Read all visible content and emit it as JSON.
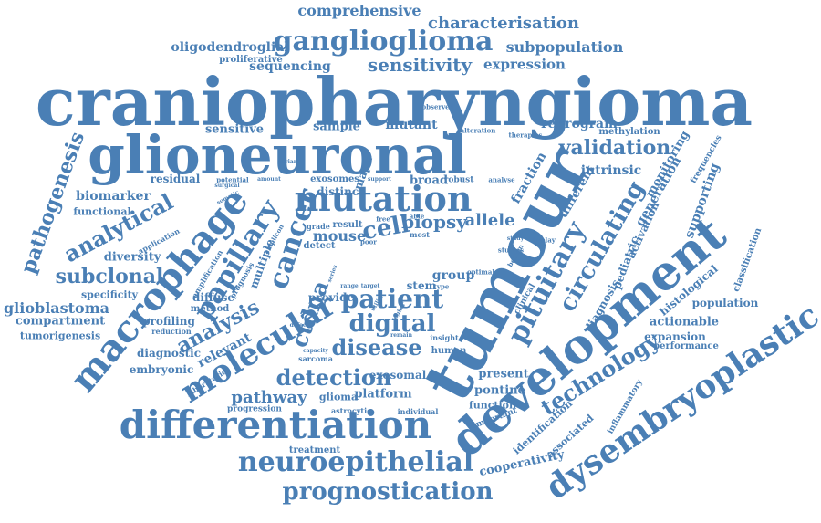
{
  "color": "#4a7fb5",
  "words": [
    {
      "text": "craniopharyngioma",
      "weight": 1.0
    },
    {
      "text": "glioneuronal",
      "weight": 0.86
    },
    {
      "text": "tumour",
      "weight": 0.86
    },
    {
      "text": "development",
      "weight": 0.74
    },
    {
      "text": "differentiation",
      "weight": 0.62
    },
    {
      "text": "macrophage",
      "weight": 0.58
    },
    {
      "text": "molecular",
      "weight": 0.54
    },
    {
      "text": "mutation",
      "weight": 0.54
    },
    {
      "text": "dysembryoplastic",
      "weight": 0.52
    },
    {
      "text": "ganglioglioma",
      "weight": 0.48
    },
    {
      "text": "papillary",
      "weight": 0.46
    },
    {
      "text": "cancer",
      "weight": 0.46
    },
    {
      "text": "pituitary",
      "weight": 0.44
    },
    {
      "text": "neuroepithelial",
      "weight": 0.44
    },
    {
      "text": "patient",
      "weight": 0.42
    },
    {
      "text": "prognostication",
      "weight": 0.4
    },
    {
      "text": "digital",
      "weight": 0.4
    },
    {
      "text": "detection",
      "weight": 0.4
    },
    {
      "text": "circulating",
      "weight": 0.38
    },
    {
      "text": "technology",
      "weight": 0.38
    },
    {
      "text": "disease",
      "weight": 0.36
    },
    {
      "text": "analytical",
      "weight": 0.36
    },
    {
      "text": "validation",
      "weight": 0.32
    },
    {
      "text": "ctdna",
      "weight": 0.34
    },
    {
      "text": "analysis",
      "weight": 0.3
    },
    {
      "text": "cell",
      "weight": 0.34
    },
    {
      "text": "pathogenesis",
      "weight": 0.3
    },
    {
      "text": "subclonal",
      "weight": 0.3
    },
    {
      "text": "sensitivity",
      "weight": 0.26
    },
    {
      "text": "characterisation",
      "weight": 0.24
    },
    {
      "text": "comprehensive",
      "weight": 0.22
    },
    {
      "text": "pathway",
      "weight": 0.24
    },
    {
      "text": "glioblastoma",
      "weight": 0.22
    },
    {
      "text": "subpopulation",
      "weight": 0.2
    },
    {
      "text": "expression",
      "weight": 0.18
    },
    {
      "text": "sequencing",
      "weight": 0.18
    },
    {
      "text": "oligodendroglial",
      "weight": 0.16
    },
    {
      "text": "proliferative",
      "weight": 0.12
    },
    {
      "text": "sensitive",
      "weight": 0.18
    },
    {
      "text": "sample",
      "weight": 0.16
    },
    {
      "text": "mutant",
      "weight": 0.18
    },
    {
      "text": "reprogram",
      "weight": 0.18
    },
    {
      "text": "methylation",
      "weight": 0.12
    },
    {
      "text": "residual",
      "weight": 0.14
    },
    {
      "text": "biomarker",
      "weight": 0.18
    },
    {
      "text": "functional",
      "weight": 0.14
    },
    {
      "text": "diversity",
      "weight": 0.16
    },
    {
      "text": "specificity",
      "weight": 0.14
    },
    {
      "text": "compartment",
      "weight": 0.16
    },
    {
      "text": "tumorigenesis",
      "weight": 0.12
    },
    {
      "text": "profiling",
      "weight": 0.14
    },
    {
      "text": "reduction",
      "weight": 0.1
    },
    {
      "text": "diagnostic",
      "weight": 0.14
    },
    {
      "text": "embryonic",
      "weight": 0.14
    },
    {
      "text": "relevant",
      "weight": 0.18
    },
    {
      "text": "mouse",
      "weight": 0.18
    },
    {
      "text": "biopsy",
      "weight": 0.22
    },
    {
      "text": "allele",
      "weight": 0.2
    },
    {
      "text": "provide",
      "weight": 0.16
    },
    {
      "text": "exosomes",
      "weight": 0.12
    },
    {
      "text": "distinct",
      "weight": 0.14
    },
    {
      "text": "broad",
      "weight": 0.14
    },
    {
      "text": "intrinsic",
      "weight": 0.16
    },
    {
      "text": "different",
      "weight": 0.16
    },
    {
      "text": "generation",
      "weight": 0.16
    },
    {
      "text": "monitoring",
      "weight": 0.14
    },
    {
      "text": "supporting",
      "weight": 0.16
    },
    {
      "text": "activation",
      "weight": 0.14
    },
    {
      "text": "pediatric",
      "weight": 0.14
    },
    {
      "text": "classification",
      "weight": 0.12
    },
    {
      "text": "population",
      "weight": 0.14
    },
    {
      "text": "histological",
      "weight": 0.14
    },
    {
      "text": "actionable",
      "weight": 0.16
    },
    {
      "text": "expansion",
      "weight": 0.14
    },
    {
      "text": "performance",
      "weight": 0.12
    },
    {
      "text": "diagnosis",
      "weight": 0.14
    },
    {
      "text": "fraction",
      "weight": 0.16
    },
    {
      "text": "present",
      "weight": 0.16
    },
    {
      "text": "pontine",
      "weight": 0.16
    },
    {
      "text": "function",
      "weight": 0.14
    },
    {
      "text": "identification",
      "weight": 0.14
    },
    {
      "text": "associated",
      "weight": 0.14
    },
    {
      "text": "cooperativity",
      "weight": 0.16
    },
    {
      "text": "exosomal",
      "weight": 0.16
    },
    {
      "text": "platform",
      "weight": 0.16
    },
    {
      "text": "glioma",
      "weight": 0.14
    },
    {
      "text": "progression",
      "weight": 0.12
    },
    {
      "text": "individual",
      "weight": 0.1
    },
    {
      "text": "treatment",
      "weight": 0.12
    },
    {
      "text": "diffuse",
      "weight": 0.14
    },
    {
      "text": "method",
      "weight": 0.12
    },
    {
      "text": "multiple",
      "weight": 0.14
    },
    {
      "text": "group",
      "weight": 0.16
    },
    {
      "text": "stem",
      "weight": 0.14
    },
    {
      "text": "human",
      "weight": 0.12
    },
    {
      "text": "insight",
      "weight": 0.1
    },
    {
      "text": "mapk",
      "weight": 0.14
    },
    {
      "text": "detect",
      "weight": 0.12
    },
    {
      "text": "result",
      "weight": 0.12
    },
    {
      "text": "grade",
      "weight": 0.1
    },
    {
      "text": "most",
      "weight": 0.1
    },
    {
      "text": "free",
      "weight": 0.1
    },
    {
      "text": "poor",
      "weight": 0.1
    },
    {
      "text": "able",
      "weight": 0.1
    },
    {
      "text": "range",
      "weight": 0.08
    },
    {
      "text": "target",
      "weight": 0.08
    },
    {
      "text": "prognosis",
      "weight": 0.1
    },
    {
      "text": "amplification",
      "weight": 0.1
    },
    {
      "text": "application",
      "weight": 0.1
    },
    {
      "text": "sarcoma",
      "weight": 0.1
    },
    {
      "text": "capacity",
      "weight": 0.08
    },
    {
      "text": "astrocytic",
      "weight": 0.1
    },
    {
      "text": "laboratories",
      "weight": 0.1
    },
    {
      "text": "defect",
      "weight": 0.08
    },
    {
      "text": "remain",
      "weight": 0.08
    },
    {
      "text": "observed",
      "weight": 0.08
    },
    {
      "text": "alteration",
      "weight": 0.08
    },
    {
      "text": "therapies",
      "weight": 0.08
    },
    {
      "text": "robust",
      "weight": 0.1
    },
    {
      "text": "analyse",
      "weight": 0.08
    },
    {
      "text": "studies",
      "weight": 0.08
    },
    {
      "text": "optimal",
      "weight": 0.08
    },
    {
      "text": "benign",
      "weight": 0.08
    },
    {
      "text": "display",
      "weight": 0.08
    },
    {
      "text": "frequencies",
      "weight": 0.1
    },
    {
      "text": "inflammatory",
      "weight": 0.1
    },
    {
      "text": "important",
      "weight": 0.1
    },
    {
      "text": "clinical",
      "weight": 0.1
    },
    {
      "text": "type",
      "weight": 0.08
    },
    {
      "text": "potential",
      "weight": 0.08
    },
    {
      "text": "amount",
      "weight": 0.08
    },
    {
      "text": "variant",
      "weight": 0.08
    },
    {
      "text": "surgical",
      "weight": 0.08
    },
    {
      "text": "somatic",
      "weight": 0.08
    },
    {
      "text": "amplicon",
      "weight": 0.08
    },
    {
      "text": "support",
      "weight": 0.08
    },
    {
      "text": "series",
      "weight": 0.06
    },
    {
      "text": "utility",
      "weight": 0.06
    },
    {
      "text": "higher",
      "weight": 0.06
    },
    {
      "text": "study",
      "weight": 0.06
    }
  ]
}
